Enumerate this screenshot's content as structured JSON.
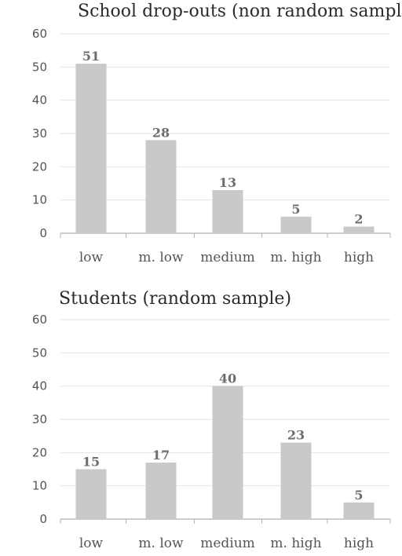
{
  "chart_data": [
    {
      "type": "bar",
      "title": "School drop-outs (non random sample)",
      "categories": [
        "low",
        "m. low",
        "medium",
        "m. high",
        "high"
      ],
      "values": [
        51,
        28,
        13,
        5,
        2
      ],
      "data_labels": [
        "51",
        "28",
        "13",
        "5",
        "2"
      ],
      "ylim": [
        0,
        60
      ],
      "yticks": [
        0,
        10,
        20,
        30,
        40,
        50,
        60
      ],
      "grid": true,
      "bar_color": "#c9c9c9",
      "grid_color": "#e2e2e2"
    },
    {
      "type": "bar",
      "title": "Students (random sample)",
      "categories": [
        "low",
        "m. low",
        "medium",
        "m. high",
        "high"
      ],
      "values": [
        15,
        17,
        40,
        23,
        5
      ],
      "data_labels": [
        "15",
        "17",
        "40",
        "23",
        "5"
      ],
      "ylim": [
        0,
        60
      ],
      "yticks": [
        0,
        10,
        20,
        30,
        40,
        50,
        60
      ],
      "grid": true,
      "bar_color": "#c9c9c9",
      "grid_color": "#e2e2e2"
    }
  ]
}
